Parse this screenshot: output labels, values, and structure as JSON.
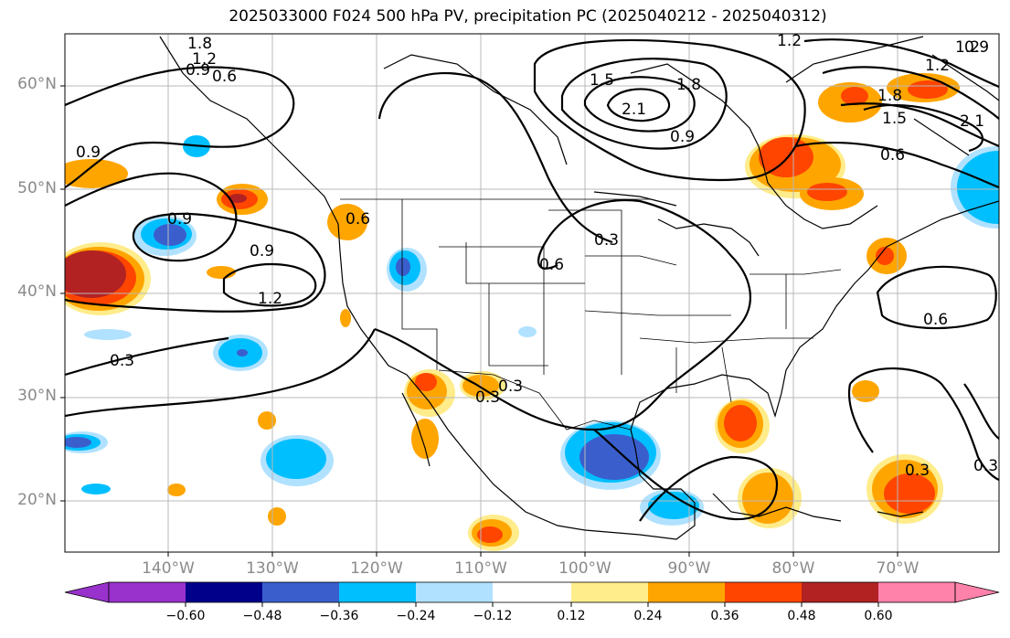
{
  "title": "2025033000 F024 500 hPa PV, precipitation PC (2025040212 - 2025040312)",
  "lat_labels": [
    "60°N",
    "50°N",
    "40°N",
    "30°N",
    "20°N"
  ],
  "lon_labels": [
    "140°W",
    "130°W",
    "120°W",
    "110°W",
    "100°W",
    "90°W",
    "80°W",
    "70°W"
  ],
  "colorbar": {
    "colors": [
      "#9932cc",
      "#00008b",
      "#3a5fcd",
      "#00bfff",
      "#b0e2ff",
      "#ffffff",
      "#ffec8b",
      "#ffa500",
      "#ff4500",
      "#b22222",
      "#ff82ab"
    ],
    "ticks": [
      "−0.60",
      "−0.48",
      "−0.36",
      "−0.24",
      "−0.12",
      "0.12",
      "0.24",
      "0.36",
      "0.48",
      "0.60"
    ]
  },
  "contour_labels": [
    "1.8",
    "1.2",
    "0.9",
    "0.6",
    "0.9",
    "1.5",
    "2.1",
    "1.8",
    "1.2",
    "0.9",
    "0.6",
    "0.9",
    "1.2",
    "0.3",
    "0.9",
    "1.2",
    "0.6",
    "0.3",
    "0.3",
    "0.6",
    "0.3",
    "0.3",
    "0.6",
    "1.8",
    "1.5",
    "2.1",
    "0.9",
    "0.3",
    "1.2"
  ],
  "map_meta": {
    "extent_lon": [
      -150,
      -60
    ],
    "extent_lat": [
      15,
      65
    ],
    "grid_lons": [
      -140,
      -130,
      -120,
      -110,
      -100,
      -90,
      -80,
      -70
    ],
    "grid_lats": [
      60,
      50,
      40,
      30,
      20
    ]
  }
}
